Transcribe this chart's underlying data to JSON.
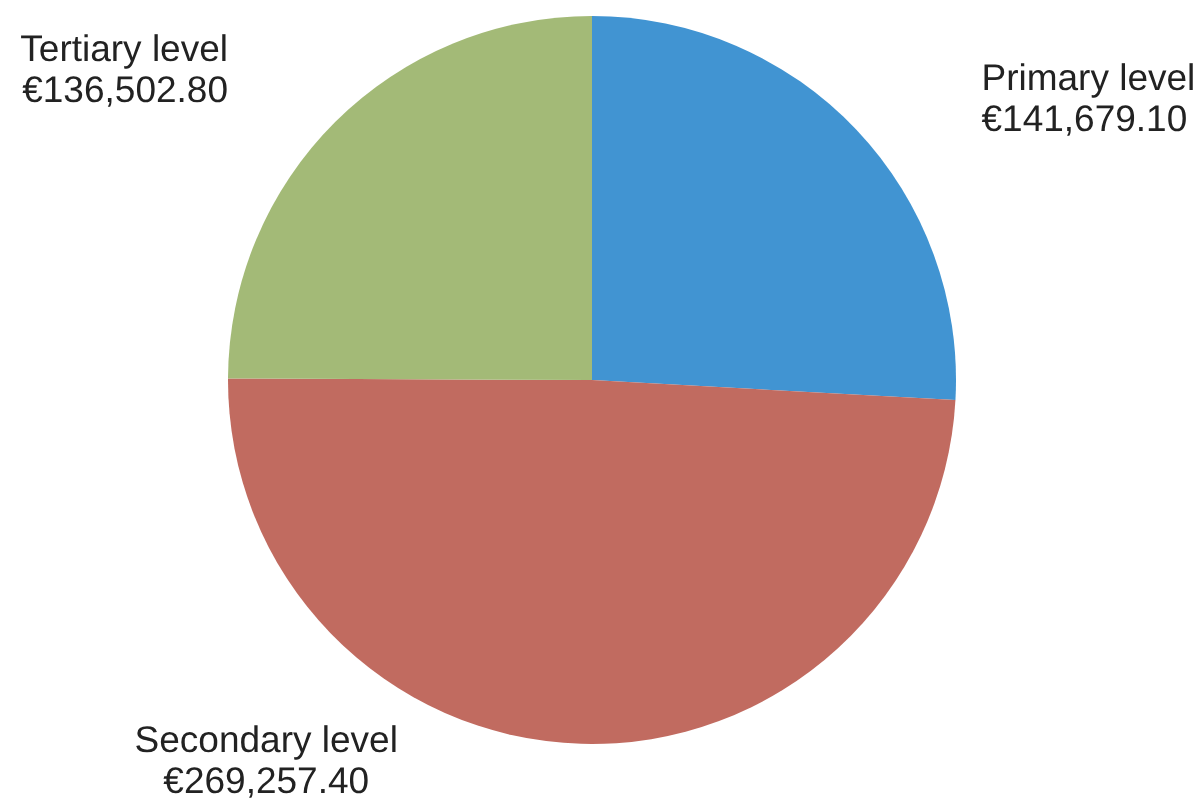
{
  "chart_data": {
    "type": "pie",
    "categories": [
      "Primary level",
      "Secondary level",
      "Tertiary level"
    ],
    "values": [
      141679.1,
      269257.4,
      136502.8
    ],
    "colors": [
      "#4194d2",
      "#c16b60",
      "#a3ba77"
    ],
    "value_labels": [
      "€141,679.10",
      "€269,257.40",
      "€136,502.80"
    ]
  }
}
